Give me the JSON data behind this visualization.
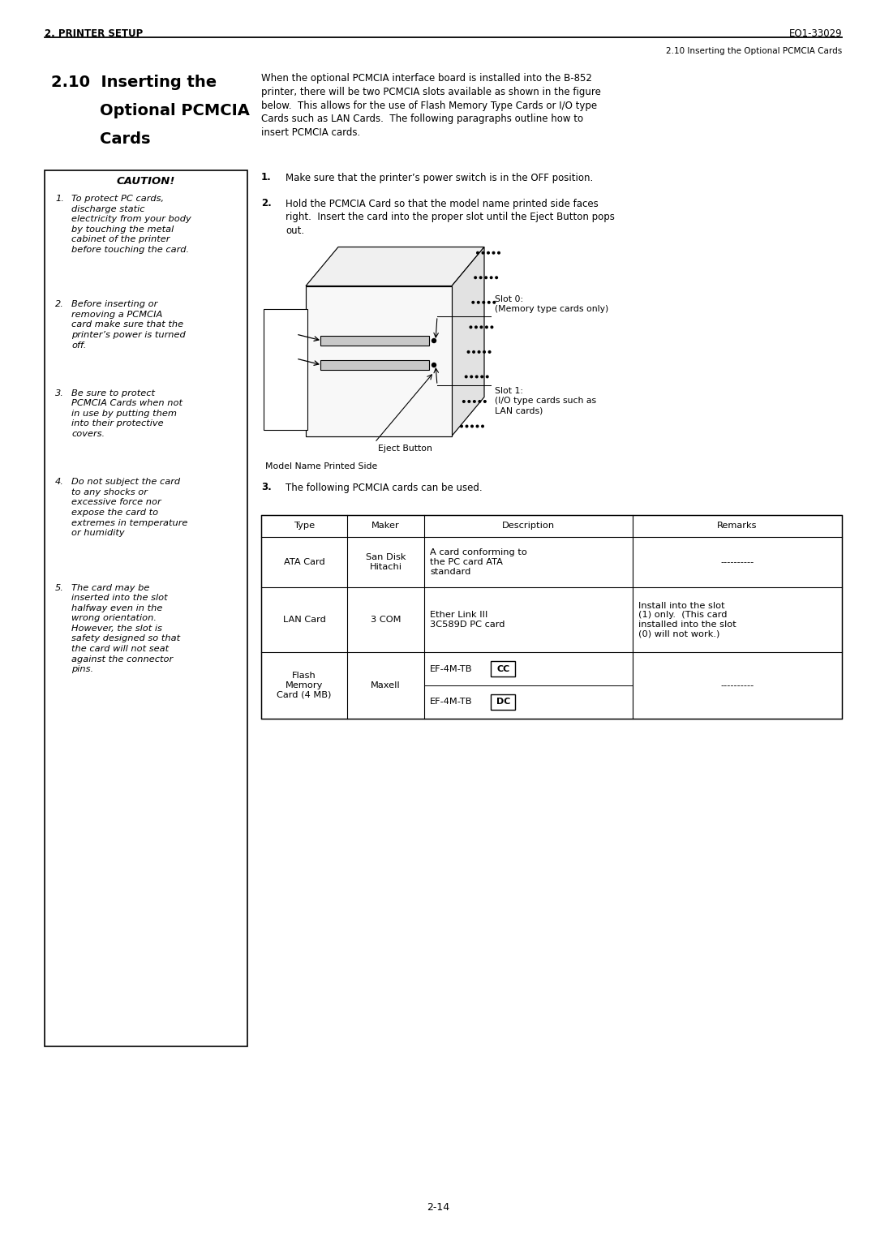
{
  "page_width": 10.8,
  "page_height": 15.25,
  "bg_color": "#ffffff",
  "header_left": "2. PRINTER SETUP",
  "header_right": "EO1-33029",
  "header_sub_right": "2.10 Inserting the Optional PCMCIA Cards",
  "section_title_line1": "2.10  Inserting the",
  "section_title_line2": "Optional PCMCIA",
  "section_title_line3": "Cards",
  "caution_title": "CAUTION!",
  "caution_items": [
    "To protect PC cards,\ndischarge static\nelectricity from your body\nby touching the metal\ncabinet of the printer\nbefore touching the card.",
    "Before inserting or\nremoving a PCMCIA\ncard make sure that the\nprinter’s power is turned\noff.",
    "Be sure to protect\nPCMCIA Cards when not\nin use by putting them\ninto their protective\ncovers.",
    "Do not subject the card\nto any shocks or\nexcessive force nor\nexpose the card to\nextremes in temperature\nor humidity",
    "The card may be\ninserted into the slot\nhalfway even in the\nwrong orientation.\nHowever, the slot is\nsafety designed so that\nthe card will not seat\nagainst the connector\npins."
  ],
  "intro_text": "When the optional PCMCIA interface board is installed into the B-852\nprinter, there will be two PCMCIA slots available as shown in the figure\nbelow.  This allows for the use of Flash Memory Type Cards or I/O type\nCards such as LAN Cards.  The following paragraphs outline how to\ninsert PCMCIA cards.",
  "step1": "Make sure that the printer’s power switch is in the OFF position.",
  "step2_line1": "Hold the PCMCIA Card so that the model name printed side faces",
  "step2_line2": "right.  Insert the card into the proper slot until the Eject Button pops",
  "step2_line3": "out.",
  "slot0_label": "Slot 0:\n(Memory type cards only)",
  "slot1_label": "Slot 1:\n(I/O type cards such as\nLAN cards)",
  "eject_label": "Eject Button",
  "model_label": "Model Name Printed Side",
  "step3_intro": "The following PCMCIA cards can be used.",
  "table_headers": [
    "Type",
    "Maker",
    "Description",
    "Remarks"
  ],
  "row0_type": "ATA Card",
  "row0_maker": "San Disk\nHitachi",
  "row0_desc": "A card conforming to\nthe PC card ATA\nstandard",
  "row0_remarks": "----------",
  "row1_type": "LAN Card",
  "row1_maker": "3 COM",
  "row1_desc": "Ether Link III\n3C589D PC card",
  "row1_remarks": "Install into the slot\n(1) only.  (This card\ninstalled into the slot\n(0) will not work.)",
  "row2_type": "Flash\nMemory\nCard (4 MB)",
  "row2_maker": "Maxell",
  "row2_desc_top": "EF-4M-TB",
  "row2_desc_top_box": "CC",
  "row2_desc_bot": "EF-4M-TB",
  "row2_desc_bot_box": "DC",
  "row2_remarks": "----------",
  "footer_text": "2-14",
  "font_color": "#000000"
}
